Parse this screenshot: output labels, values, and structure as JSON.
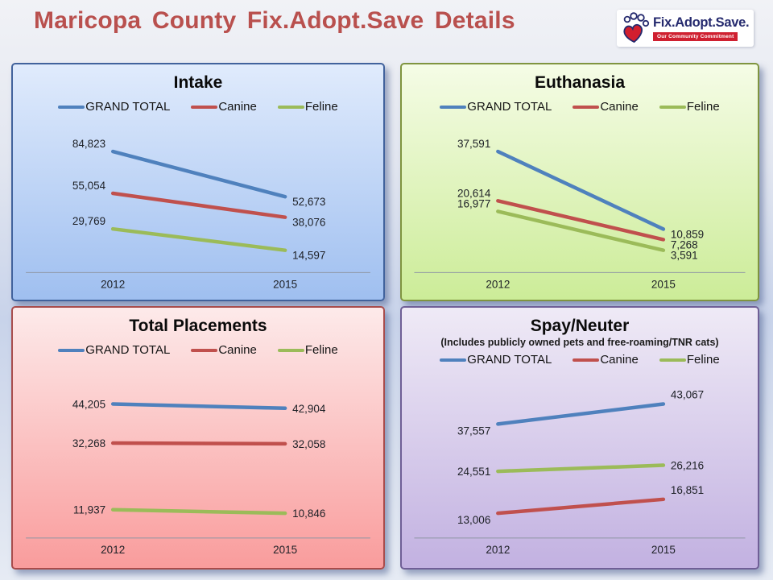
{
  "page": {
    "title": "Maricopa County Fix.Adopt.Save Details"
  },
  "logo": {
    "brand": "Fix.Adopt.Save.",
    "tagline": "Our Community Commitment"
  },
  "axis_color": "#8f96a4",
  "chart_data": [
    {
      "type": "line",
      "title": "Intake",
      "subtitle": "",
      "categories": [
        "2012",
        "2015"
      ],
      "legend_position": "top",
      "series": [
        {
          "name": "GRAND TOTAL",
          "color": "#4F81BD",
          "values": [
            84823,
            52673
          ],
          "labels": [
            "84,823",
            "52,673"
          ]
        },
        {
          "name": "Canine",
          "color": "#C0504D",
          "values": [
            55054,
            38076
          ],
          "labels": [
            "55,054",
            "38,076"
          ]
        },
        {
          "name": "Feline",
          "color": "#9BBB59",
          "values": [
            29769,
            14597
          ],
          "labels": [
            "29,769",
            "14,597"
          ]
        }
      ],
      "panel": {
        "bg_top": "#e0ebfc",
        "bg_bottom": "#9fbff0",
        "border": "#41629c"
      }
    },
    {
      "type": "line",
      "title": "Euthanasia",
      "subtitle": "",
      "categories": [
        "2012",
        "2015"
      ],
      "legend_position": "top",
      "series": [
        {
          "name": "GRAND TOTAL",
          "color": "#4F81BD",
          "values": [
            37591,
            10859
          ],
          "labels": [
            "37,591",
            "10,859"
          ]
        },
        {
          "name": "Canine",
          "color": "#C0504D",
          "values": [
            20614,
            7268
          ],
          "labels": [
            "20,614",
            "7,268"
          ]
        },
        {
          "name": "Feline",
          "color": "#9BBB59",
          "values": [
            16977,
            3591
          ],
          "labels": [
            "16,977",
            "3,591"
          ]
        }
      ],
      "panel": {
        "bg_top": "#f5fce6",
        "bg_bottom": "#ccec98",
        "border": "#7f943f"
      }
    },
    {
      "type": "line",
      "title": "Total Placements",
      "subtitle": "",
      "categories": [
        "2012",
        "2015"
      ],
      "legend_position": "top",
      "series": [
        {
          "name": "GRAND TOTAL",
          "color": "#4F81BD",
          "values": [
            44205,
            42904
          ],
          "labels": [
            "44,205",
            "42,904"
          ]
        },
        {
          "name": "Canine",
          "color": "#C0504D",
          "values": [
            32268,
            32058
          ],
          "labels": [
            "32,268",
            "32,058"
          ]
        },
        {
          "name": "Feline",
          "color": "#9BBB59",
          "values": [
            11937,
            10846
          ],
          "labels": [
            "11,937",
            "10,846"
          ]
        }
      ],
      "panel": {
        "bg_top": "#fdeaea",
        "bg_bottom": "#f99c9c",
        "border": "#a84c4c"
      }
    },
    {
      "type": "line",
      "title": "Spay/Neuter",
      "subtitle": "(Includes publicly owned pets and free-roaming/TNR cats)",
      "categories": [
        "2012",
        "2015"
      ],
      "legend_position": "top",
      "series": [
        {
          "name": "GRAND TOTAL",
          "color": "#4F81BD",
          "values": [
            37557,
            43067
          ],
          "labels": [
            "37,557",
            "43,067"
          ]
        },
        {
          "name": "Canine",
          "color": "#C0504D",
          "values": [
            13006,
            16851
          ],
          "labels": [
            "13,006",
            "16,851"
          ]
        },
        {
          "name": "Feline",
          "color": "#9BBB59",
          "values": [
            24551,
            26216
          ],
          "labels": [
            "24,551",
            "26,216"
          ]
        }
      ],
      "panel": {
        "bg_top": "#efeaf6",
        "bg_bottom": "#c2b1e1",
        "border": "#6f5f96"
      }
    }
  ]
}
